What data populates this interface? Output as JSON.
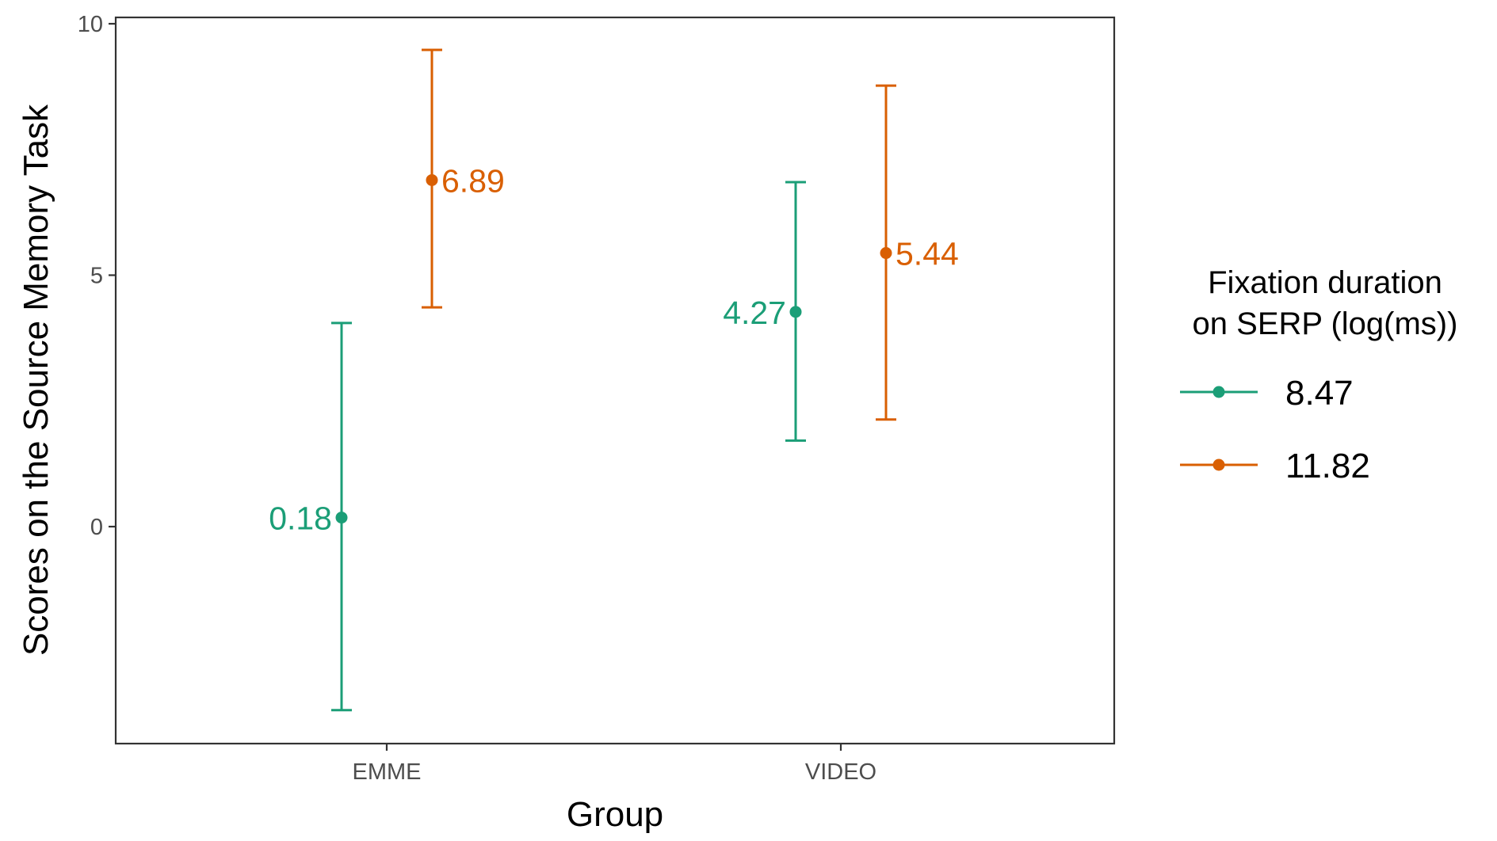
{
  "chart_data": {
    "type": "errorbar",
    "xlabel": "Group",
    "ylabel": "Scores on the Source Memory Task",
    "categories": [
      "EMME",
      "VIDEO"
    ],
    "ylim": [
      -4.3,
      10.1
    ],
    "yticks": [
      0,
      5,
      10
    ],
    "grid": false,
    "legend": {
      "title_line1": "Fixation duration",
      "title_line2": "on SERP (log(ms))",
      "placement": "right"
    },
    "series": [
      {
        "name": "8.47",
        "color": "#1b9e77",
        "points": [
          {
            "category": "EMME",
            "value": 0.18,
            "lower": -3.65,
            "upper": 4.05,
            "label": "0.18"
          },
          {
            "category": "VIDEO",
            "value": 4.27,
            "lower": 1.71,
            "upper": 6.85,
            "label": "4.27"
          }
        ]
      },
      {
        "name": "11.82",
        "color": "#d95f02",
        "points": [
          {
            "category": "EMME",
            "value": 6.89,
            "lower": 4.36,
            "upper": 9.48,
            "label": "6.89"
          },
          {
            "category": "VIDEO",
            "value": 5.44,
            "lower": 2.13,
            "upper": 8.77,
            "label": "5.44"
          }
        ]
      }
    ]
  }
}
